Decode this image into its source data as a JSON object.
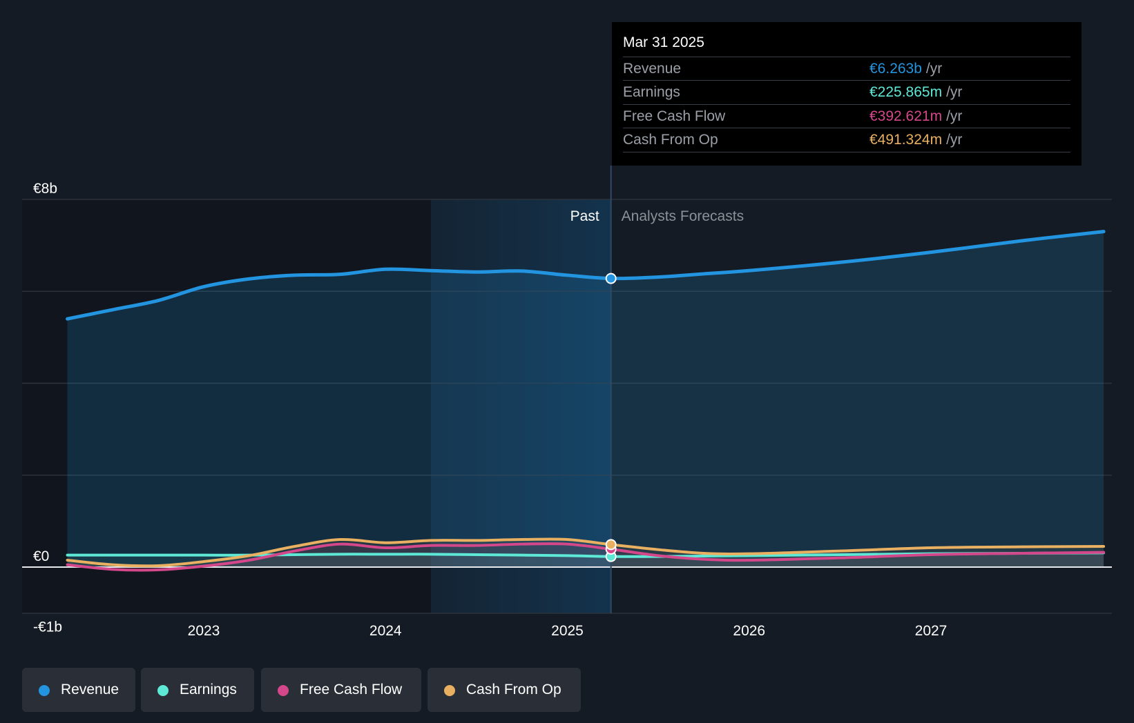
{
  "colors": {
    "revenue": "#2394df",
    "earnings": "#5ee8d6",
    "fcf": "#d4478a",
    "cfo": "#e9b061",
    "past_shade": "#13344f"
  },
  "tooltip": {
    "date": "Mar 31 2025",
    "rows": [
      {
        "label": "Revenue",
        "value": "€6.263b",
        "unit": "/yr"
      },
      {
        "label": "Earnings",
        "value": "€225.865m",
        "unit": "/yr"
      },
      {
        "label": "Free Cash Flow",
        "value": "€392.621m",
        "unit": "/yr"
      },
      {
        "label": "Cash From Op",
        "value": "€491.324m",
        "unit": "/yr"
      }
    ]
  },
  "legend": [
    {
      "label": "Revenue",
      "color": "#2394df"
    },
    {
      "label": "Earnings",
      "color": "#5ee8d6"
    },
    {
      "label": "Free Cash Flow",
      "color": "#d4478a"
    },
    {
      "label": "Cash From Op",
      "color": "#e9b061"
    }
  ],
  "chart_data": {
    "type": "line",
    "y_tick_labels": [
      {
        "value": 8,
        "label": "€8b"
      },
      {
        "value": 0,
        "label": "€0"
      },
      {
        "value": -1,
        "label": "-€1b"
      }
    ],
    "ylim": [
      -1,
      8
    ],
    "xlim": [
      2022.25,
      2027.95
    ],
    "x_ticks": [
      2023,
      2024,
      2025,
      2026,
      2027
    ],
    "grid": true,
    "past_label": "Past",
    "forecast_label": "Analysts Forecasts",
    "divider_x": 2025.24,
    "past_highlight_start": 2024.25,
    "series": [
      {
        "name": "Revenue",
        "key": "revenue",
        "x": [
          2022.25,
          2022.5,
          2022.75,
          2023.0,
          2023.25,
          2023.5,
          2023.75,
          2024.0,
          2024.25,
          2024.5,
          2024.75,
          2025.0,
          2025.24,
          2025.5,
          2025.75,
          2026.0,
          2026.5,
          2027.0,
          2027.5,
          2027.95
        ],
        "y": [
          5.4,
          5.6,
          5.8,
          6.1,
          6.27,
          6.35,
          6.37,
          6.48,
          6.45,
          6.42,
          6.44,
          6.35,
          6.28,
          6.31,
          6.38,
          6.45,
          6.63,
          6.85,
          7.1,
          7.3
        ]
      },
      {
        "name": "Earnings",
        "key": "earnings",
        "x": [
          2022.25,
          2022.5,
          2022.75,
          2023.0,
          2023.25,
          2023.5,
          2023.75,
          2024.0,
          2024.25,
          2024.5,
          2024.75,
          2025.0,
          2025.24,
          2025.5,
          2025.75,
          2026.0,
          2026.5,
          2027.0,
          2027.5,
          2027.95
        ],
        "y": [
          0.26,
          0.26,
          0.26,
          0.26,
          0.26,
          0.27,
          0.28,
          0.28,
          0.28,
          0.27,
          0.26,
          0.25,
          0.23,
          0.23,
          0.24,
          0.25,
          0.27,
          0.29,
          0.3,
          0.31
        ]
      },
      {
        "name": "Free Cash Flow",
        "key": "fcf",
        "x": [
          2022.25,
          2022.5,
          2022.75,
          2023.0,
          2023.25,
          2023.5,
          2023.75,
          2024.0,
          2024.25,
          2024.5,
          2024.75,
          2025.0,
          2025.24,
          2025.5,
          2025.75,
          2026.0,
          2026.5,
          2027.0,
          2027.5,
          2027.95
        ],
        "y": [
          0.05,
          -0.05,
          -0.06,
          0.02,
          0.15,
          0.35,
          0.5,
          0.42,
          0.47,
          0.47,
          0.5,
          0.5,
          0.39,
          0.25,
          0.17,
          0.15,
          0.2,
          0.27,
          0.3,
          0.32
        ]
      },
      {
        "name": "Cash From Op",
        "key": "cfo",
        "x": [
          2022.25,
          2022.5,
          2022.75,
          2023.0,
          2023.25,
          2023.5,
          2023.75,
          2024.0,
          2024.25,
          2024.5,
          2024.75,
          2025.0,
          2025.24,
          2025.5,
          2025.75,
          2026.0,
          2026.5,
          2027.0,
          2027.5,
          2027.95
        ],
        "y": [
          0.15,
          0.05,
          0.03,
          0.12,
          0.25,
          0.45,
          0.6,
          0.53,
          0.58,
          0.58,
          0.6,
          0.6,
          0.49,
          0.38,
          0.3,
          0.29,
          0.35,
          0.42,
          0.44,
          0.45
        ]
      }
    ]
  }
}
